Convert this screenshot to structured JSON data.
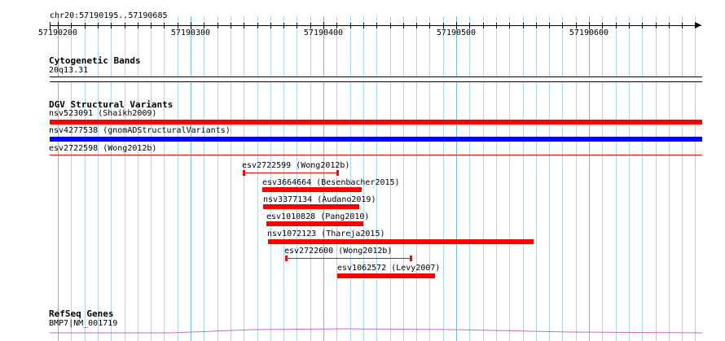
{
  "ruler": {
    "region": "chr20:57190195..57190685",
    "ticks": [
      "57190200",
      "57190300",
      "57190400",
      "57190500",
      "57190600"
    ]
  },
  "tracks": {
    "cytoband": {
      "title": "Cytogenetic Bands",
      "band": "20q13.31"
    },
    "dgv": {
      "title": "DGV Structural Variants",
      "features": [
        {
          "label": "nsv523091 (Shaikh2009)",
          "color": "#ff0000",
          "style": "bar"
        },
        {
          "label": "nsv4277538 (gnomADStructuralVariants)",
          "color": "#0000ff",
          "style": "bar"
        },
        {
          "label": "esv2722598 (Wong2012b)",
          "color": "#ff0000",
          "style": "line"
        },
        {
          "label": "esv2722599 (Wong2012b)",
          "color": "#ff0000",
          "style": "range"
        },
        {
          "label": "esv3664664 (Besenbacher2015)",
          "color": "#ff0000",
          "style": "bar"
        },
        {
          "label": "nsv3377134 (Audano2019)",
          "color": "#ff0000",
          "style": "bar"
        },
        {
          "label": "esv1010828 (Pang2010)",
          "color": "#ff0000",
          "style": "bar"
        },
        {
          "label": "nsv1072123 (Thareja2015)",
          "color": "#ff0000",
          "style": "bar"
        },
        {
          "label": "esv2722600 (Wong2012b)",
          "color": "#ff0000",
          "style": "range"
        },
        {
          "label": "esv1062572 (Levy2007)",
          "color": "#ff0000",
          "style": "bar"
        }
      ]
    },
    "refseq": {
      "title": "RefSeq Genes",
      "gene": "BMP7|NM_001719",
      "color": "#cc66cc"
    }
  }
}
